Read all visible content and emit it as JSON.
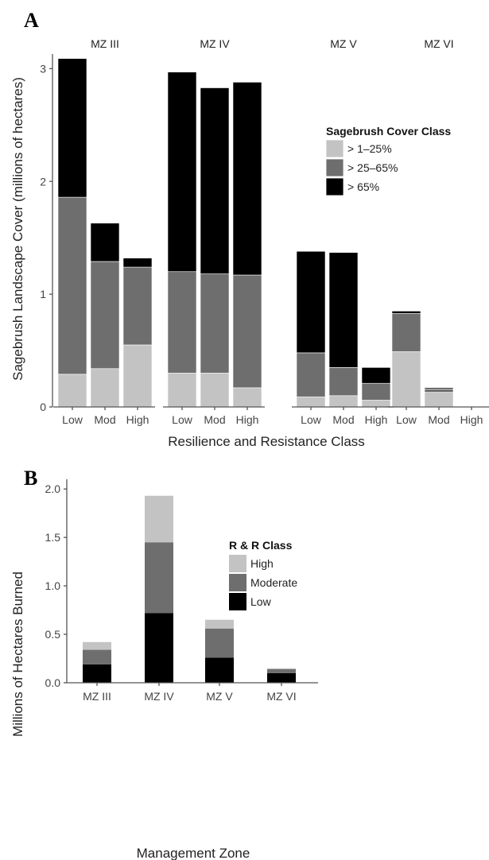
{
  "panels": {
    "a": {
      "label": "A"
    },
    "b": {
      "label": "B"
    }
  },
  "colors": {
    "light": "#c3c3c3",
    "medium": "#6e6e6e",
    "dark": "#000000"
  },
  "chart_data": [
    {
      "type": "bar",
      "stacked": true,
      "facets": [
        "MZ III",
        "MZ IV",
        "MZ V",
        "MZ VI"
      ],
      "categories": [
        "Low",
        "Mod",
        "High"
      ],
      "xlabel": "Resilience and Resistance Class",
      "ylabel": "Sagebrush Landscape Cover (millions of hectares)",
      "ylim": [
        0,
        3.2
      ],
      "yticks": [
        0,
        1,
        2,
        3
      ],
      "grid": false,
      "legend": {
        "title": "Sagebrush Cover Class",
        "position": "top-right"
      },
      "series": [
        {
          "name": "> 1–25%",
          "color": "#c3c3c3",
          "values": [
            [
              0.29,
              0.34,
              0.55
            ],
            [
              0.3,
              0.3,
              0.17
            ],
            [
              0.09,
              0.1,
              0.06
            ],
            [
              0.49,
              0.13,
              0.0
            ]
          ]
        },
        {
          "name": "> 25–65%",
          "color": "#6e6e6e",
          "values": [
            [
              1.57,
              0.95,
              0.69
            ],
            [
              0.9,
              0.88,
              1.0
            ],
            [
              0.39,
              0.25,
              0.15
            ],
            [
              0.34,
              0.03,
              0.0
            ]
          ]
        },
        {
          "name": "> 65%",
          "color": "#000000",
          "values": [
            [
              1.23,
              0.34,
              0.08
            ],
            [
              1.77,
              1.65,
              1.71
            ],
            [
              0.9,
              1.02,
              0.14
            ],
            [
              0.02,
              0.01,
              0.0
            ]
          ]
        }
      ]
    },
    {
      "type": "bar",
      "stacked": true,
      "categories": [
        "MZ III",
        "MZ IV",
        "MZ V",
        "MZ VI"
      ],
      "xlabel": "Management Zone",
      "ylabel": "Millions of Hectares Burned",
      "ylim": [
        0,
        2.1
      ],
      "yticks": [
        "0.0",
        "0.5",
        "1.0",
        "1.5",
        "2.0"
      ],
      "grid": false,
      "legend": {
        "title": "R & R Class",
        "position": "top-right"
      },
      "series": [
        {
          "name": "Low",
          "color": "#000000",
          "values": [
            0.19,
            0.72,
            0.26,
            0.1
          ]
        },
        {
          "name": "Moderate",
          "color": "#6e6e6e",
          "values": [
            0.15,
            0.73,
            0.3,
            0.04
          ]
        },
        {
          "name": "High",
          "color": "#c3c3c3",
          "values": [
            0.08,
            0.48,
            0.09,
            0.01
          ]
        }
      ]
    }
  ]
}
